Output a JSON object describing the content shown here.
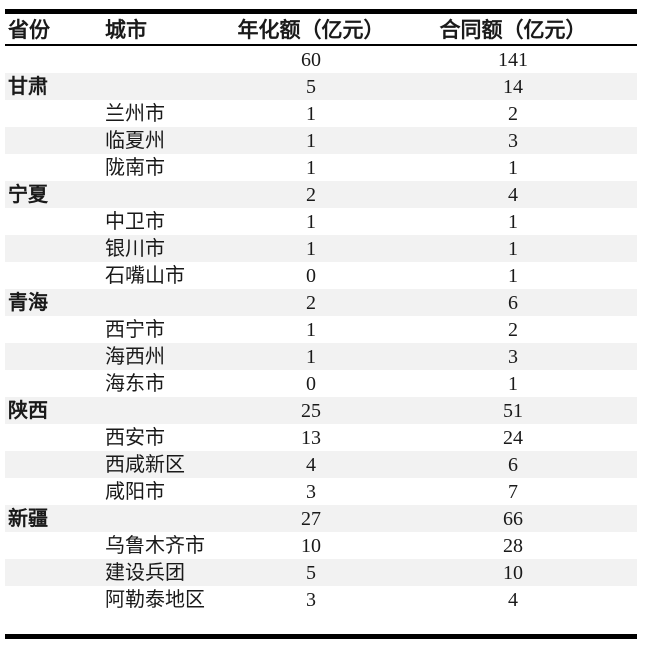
{
  "table": {
    "columns": [
      {
        "label": "省份"
      },
      {
        "label": "城市"
      },
      {
        "label": "年化额（亿元）"
      },
      {
        "label": "合同额（亿元）"
      }
    ],
    "rows": [
      {
        "province": "",
        "city": "",
        "annualized": "60",
        "contract": "141"
      },
      {
        "province": "甘肃",
        "city": "",
        "annualized": "5",
        "contract": "14"
      },
      {
        "province": "",
        "city": "兰州市",
        "annualized": "1",
        "contract": "2"
      },
      {
        "province": "",
        "city": "临夏州",
        "annualized": "1",
        "contract": "3"
      },
      {
        "province": "",
        "city": "陇南市",
        "annualized": "1",
        "contract": "1"
      },
      {
        "province": "宁夏",
        "city": "",
        "annualized": "2",
        "contract": "4"
      },
      {
        "province": "",
        "city": "中卫市",
        "annualized": "1",
        "contract": "1"
      },
      {
        "province": "",
        "city": "银川市",
        "annualized": "1",
        "contract": "1"
      },
      {
        "province": "",
        "city": "石嘴山市",
        "annualized": "0",
        "contract": "1"
      },
      {
        "province": "青海",
        "city": "",
        "annualized": "2",
        "contract": "6"
      },
      {
        "province": "",
        "city": "西宁市",
        "annualized": "1",
        "contract": "2"
      },
      {
        "province": "",
        "city": "海西州",
        "annualized": "1",
        "contract": "3"
      },
      {
        "province": "",
        "city": "海东市",
        "annualized": "0",
        "contract": "1"
      },
      {
        "province": "陕西",
        "city": "",
        "annualized": "25",
        "contract": "51"
      },
      {
        "province": "",
        "city": "西安市",
        "annualized": "13",
        "contract": "24"
      },
      {
        "province": "",
        "city": "西咸新区",
        "annualized": "4",
        "contract": "6"
      },
      {
        "province": "",
        "city": "咸阳市",
        "annualized": "3",
        "contract": "7"
      },
      {
        "province": "新疆",
        "city": "",
        "annualized": "27",
        "contract": "66"
      },
      {
        "province": "",
        "city": "乌鲁木齐市",
        "annualized": "10",
        "contract": "28"
      },
      {
        "province": "",
        "city": "建设兵团",
        "annualized": "5",
        "contract": "10"
      },
      {
        "province": "",
        "city": "阿勒泰地区",
        "annualized": "3",
        "contract": "4"
      }
    ]
  },
  "colors": {
    "stripe": "#f2f2f2",
    "border": "#000000",
    "text": "#1a1a1a"
  }
}
